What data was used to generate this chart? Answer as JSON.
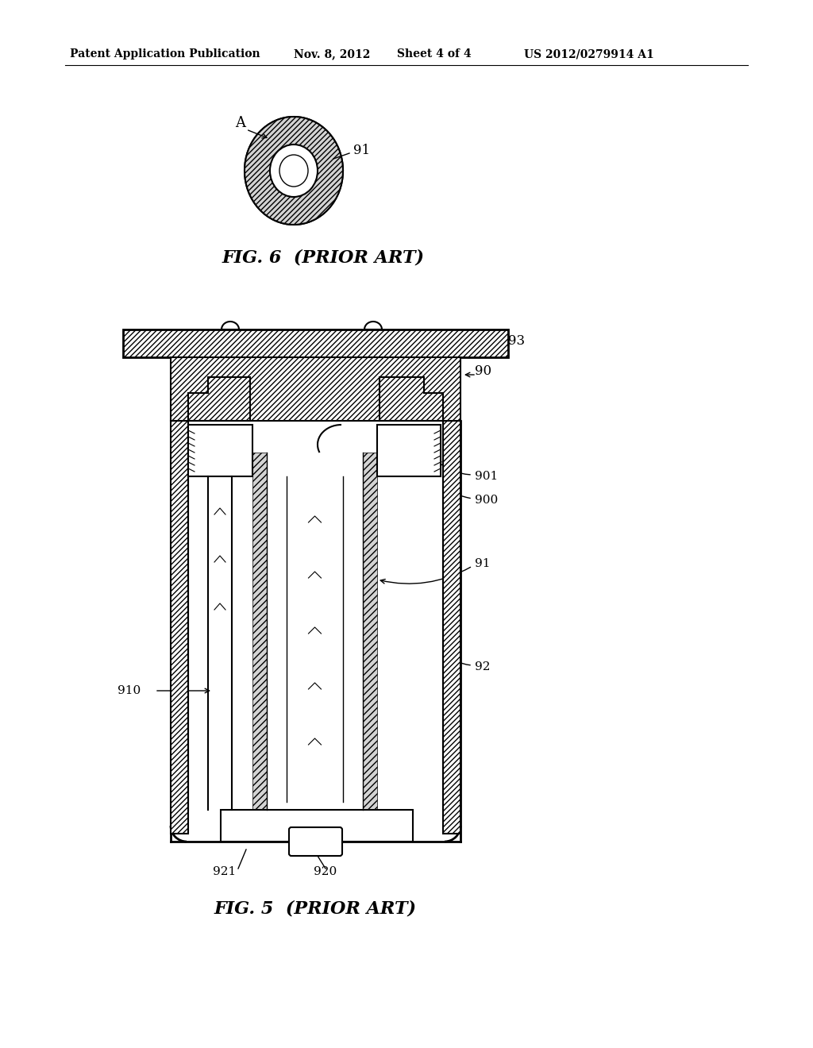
{
  "title": "Patent Application Publication",
  "date": "Nov. 8, 2012",
  "sheet": "Sheet 4 of 4",
  "patent_num": "US 2012/0279914 A1",
  "fig6_label": "FIG. 6  (PRIOR ART)",
  "fig5_label": "FIG. 5  (PRIOR ART)",
  "bg_color": "#ffffff",
  "line_color": "#000000",
  "hatch_color": "#000000"
}
